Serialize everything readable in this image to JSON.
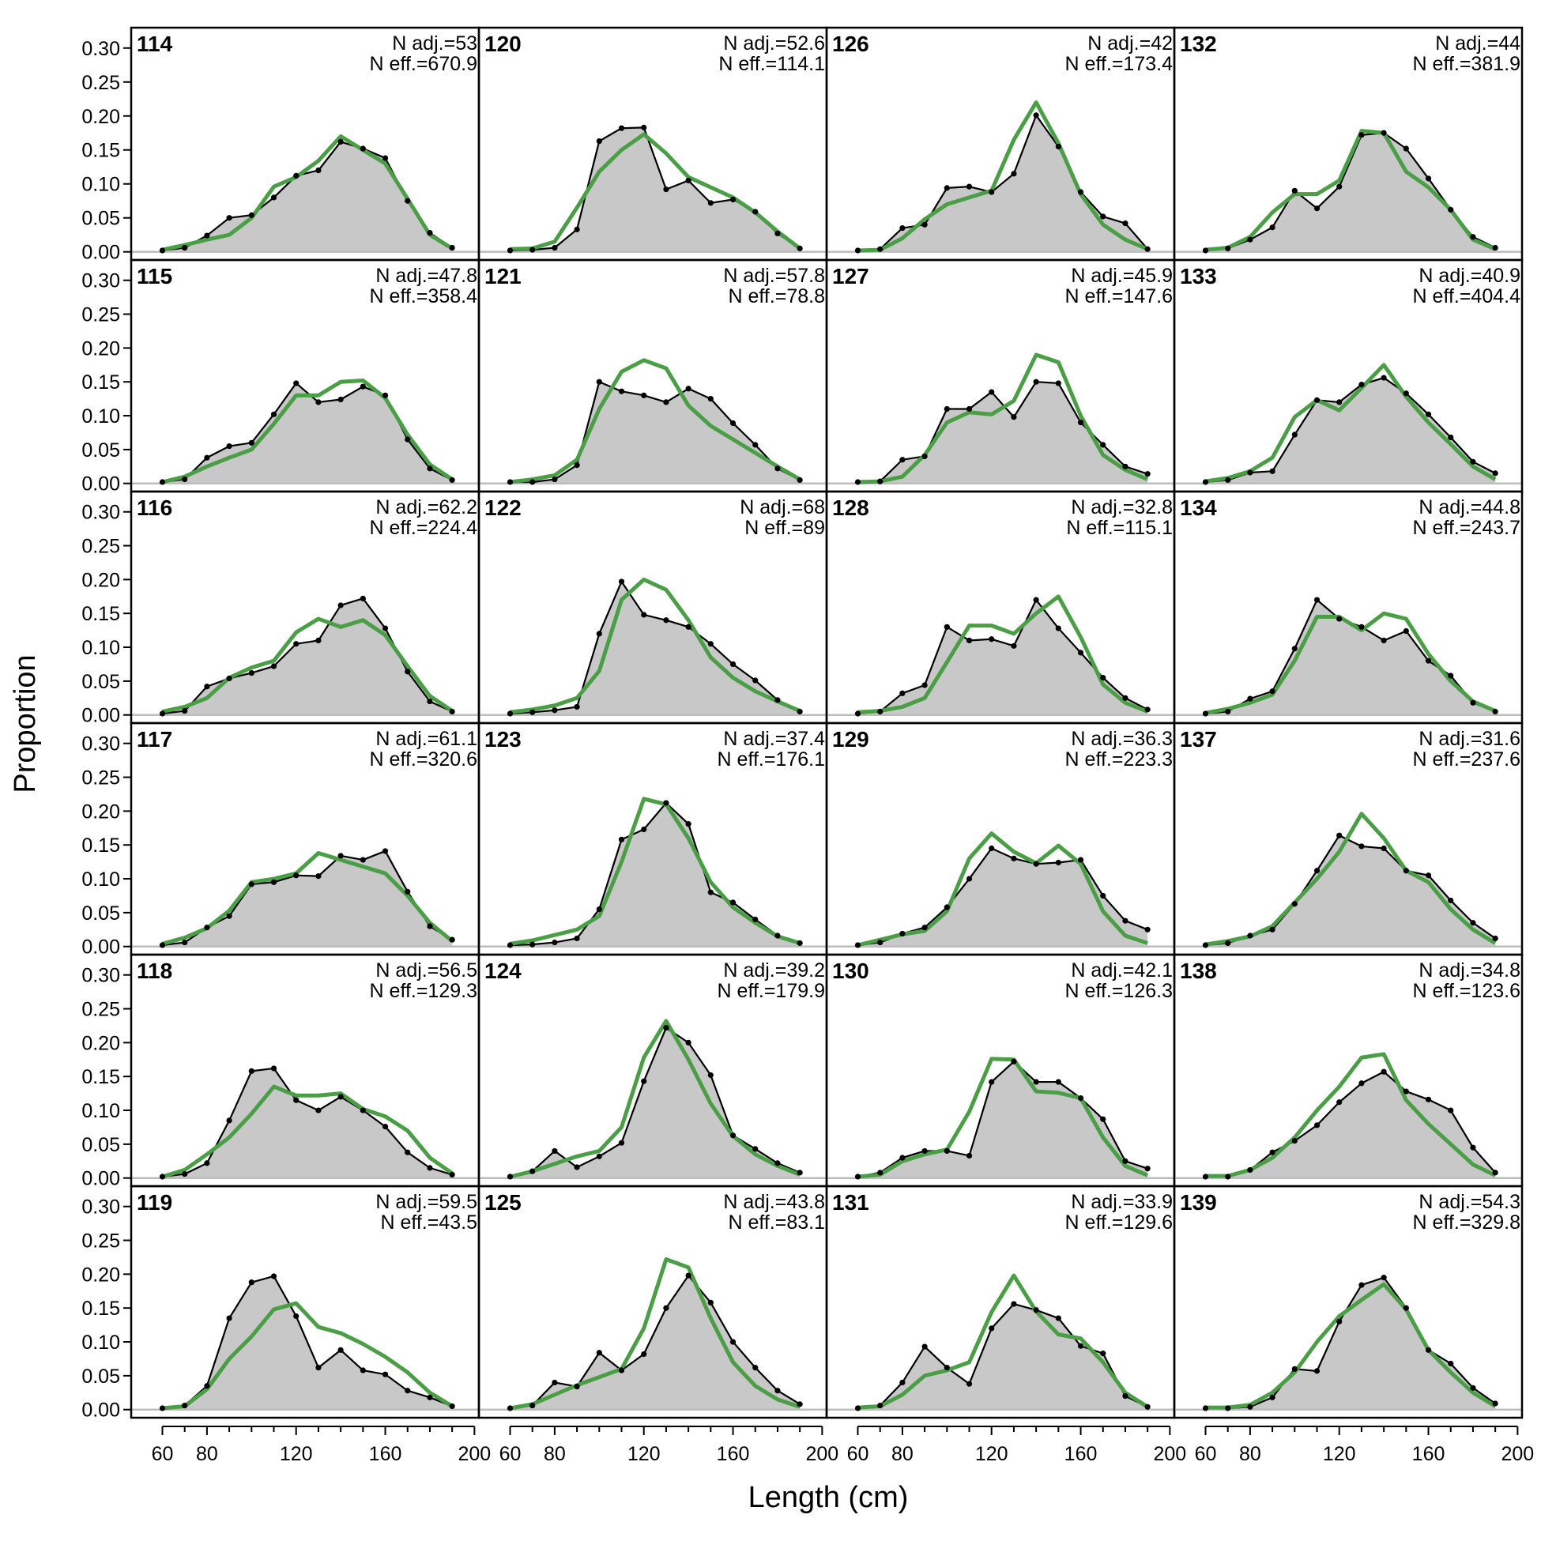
{
  "chart_data": {
    "type": "line",
    "layout": "6 rows x 4 columns of small-multiple panels, filled column by column",
    "xlabel": "Length (cm)",
    "ylabel": "Proportion",
    "xlim": [
      46,
      202
    ],
    "ylim": [
      -0.012,
      0.33
    ],
    "x_ticks": [
      60,
      80,
      120,
      160,
      200
    ],
    "y_ticks": [
      "0.00",
      "0.05",
      "0.10",
      "0.15",
      "0.20",
      "0.25",
      "0.30"
    ],
    "bins": [
      60,
      70,
      80,
      90,
      100,
      110,
      120,
      130,
      140,
      150,
      160,
      170,
      180,
      190
    ],
    "colors": {
      "observed_fill": "#c8c8c8",
      "observed_line": "#000000",
      "expected_line": "#4a9e45",
      "zero_line": "#bdbdbd"
    },
    "panels": [
      {
        "label": "114",
        "n_adj": "N adj.=53",
        "n_eff": "N eff.=670.9",
        "observed": [
          0.002,
          0.006,
          0.024,
          0.05,
          0.054,
          0.08,
          0.112,
          0.12,
          0.162,
          0.152,
          0.138,
          0.075,
          0.028,
          0.006
        ],
        "expected": [
          0.003,
          0.01,
          0.018,
          0.025,
          0.05,
          0.096,
          0.11,
          0.134,
          0.17,
          0.15,
          0.13,
          0.078,
          0.025,
          0.005
        ]
      },
      {
        "label": "115",
        "n_adj": "N adj.=47.8",
        "n_eff": "N eff.=358.4",
        "observed": [
          0.002,
          0.006,
          0.038,
          0.055,
          0.06,
          0.102,
          0.148,
          0.12,
          0.124,
          0.143,
          0.13,
          0.065,
          0.022,
          0.005
        ],
        "expected": [
          0.002,
          0.01,
          0.025,
          0.038,
          0.05,
          0.088,
          0.13,
          0.13,
          0.15,
          0.152,
          0.126,
          0.072,
          0.028,
          0.006
        ]
      },
      {
        "label": "116",
        "n_adj": "N adj.=62.2",
        "n_eff": "N eff.=224.4",
        "observed": [
          0.002,
          0.006,
          0.042,
          0.054,
          0.062,
          0.072,
          0.105,
          0.11,
          0.162,
          0.172,
          0.128,
          0.064,
          0.02,
          0.005
        ],
        "expected": [
          0.005,
          0.012,
          0.025,
          0.055,
          0.07,
          0.08,
          0.122,
          0.142,
          0.13,
          0.14,
          0.118,
          0.072,
          0.028,
          0.006
        ]
      },
      {
        "label": "117",
        "n_adj": "N adj.=61.1",
        "n_eff": "N eff.=320.6",
        "observed": [
          0.002,
          0.006,
          0.028,
          0.045,
          0.092,
          0.095,
          0.105,
          0.104,
          0.134,
          0.128,
          0.141,
          0.081,
          0.03,
          0.01
        ],
        "expected": [
          0.004,
          0.013,
          0.027,
          0.053,
          0.095,
          0.1,
          0.108,
          0.138,
          0.128,
          0.118,
          0.108,
          0.075,
          0.035,
          0.008
        ]
      },
      {
        "label": "118",
        "n_adj": "N adj.=56.5",
        "n_eff": "N eff.=129.3",
        "observed": [
          0.002,
          0.006,
          0.022,
          0.085,
          0.158,
          0.162,
          0.115,
          0.1,
          0.12,
          0.1,
          0.076,
          0.038,
          0.015,
          0.005
        ],
        "expected": [
          0.002,
          0.012,
          0.035,
          0.06,
          0.095,
          0.135,
          0.122,
          0.122,
          0.125,
          0.102,
          0.091,
          0.07,
          0.03,
          0.007
        ]
      },
      {
        "label": "119",
        "n_adj": "N adj.=59.5",
        "n_eff": "N eff.=43.5",
        "observed": [
          0.002,
          0.006,
          0.035,
          0.135,
          0.188,
          0.197,
          0.138,
          0.062,
          0.088,
          0.058,
          0.052,
          0.028,
          0.018,
          0.005
        ],
        "expected": [
          0.002,
          0.005,
          0.03,
          0.075,
          0.108,
          0.148,
          0.157,
          0.122,
          0.113,
          0.097,
          0.078,
          0.055,
          0.025,
          0.005
        ]
      },
      {
        "label": "120",
        "n_adj": "N adj.=52.6",
        "n_eff": "N eff.=114.1",
        "observed": [
          0.002,
          0.003,
          0.006,
          0.033,
          0.163,
          0.182,
          0.183,
          0.092,
          0.105,
          0.072,
          0.077,
          0.059,
          0.027,
          0.005
        ],
        "expected": [
          0.004,
          0.005,
          0.015,
          0.065,
          0.118,
          0.15,
          0.173,
          0.145,
          0.11,
          0.095,
          0.08,
          0.058,
          0.03,
          0.005
        ]
      },
      {
        "label": "121",
        "n_adj": "N adj.=57.8",
        "n_eff": "N eff.=78.8",
        "observed": [
          0.002,
          0.002,
          0.006,
          0.027,
          0.15,
          0.136,
          0.13,
          0.12,
          0.14,
          0.125,
          0.089,
          0.057,
          0.022,
          0.005
        ],
        "expected": [
          0.002,
          0.006,
          0.012,
          0.035,
          0.11,
          0.165,
          0.182,
          0.17,
          0.115,
          0.085,
          0.065,
          0.045,
          0.025,
          0.006
        ]
      },
      {
        "label": "122",
        "n_adj": "N adj.=68",
        "n_eff": "N eff.=89",
        "observed": [
          0.002,
          0.004,
          0.007,
          0.012,
          0.12,
          0.197,
          0.148,
          0.14,
          0.13,
          0.105,
          0.075,
          0.051,
          0.022,
          0.005
        ],
        "expected": [
          0.004,
          0.008,
          0.014,
          0.025,
          0.065,
          0.17,
          0.2,
          0.185,
          0.14,
          0.085,
          0.055,
          0.035,
          0.02,
          0.006
        ]
      },
      {
        "label": "123",
        "n_adj": "N adj.=37.4",
        "n_eff": "N eff.=176.1",
        "observed": [
          0.002,
          0.003,
          0.006,
          0.012,
          0.055,
          0.158,
          0.173,
          0.212,
          0.181,
          0.08,
          0.065,
          0.04,
          0.016,
          0.005
        ],
        "expected": [
          0.004,
          0.009,
          0.017,
          0.025,
          0.045,
          0.125,
          0.218,
          0.21,
          0.16,
          0.095,
          0.058,
          0.035,
          0.015,
          0.005
        ]
      },
      {
        "label": "124",
        "n_adj": "N adj.=39.2",
        "n_eff": "N eff.=179.9",
        "observed": [
          0.002,
          0.01,
          0.04,
          0.016,
          0.032,
          0.052,
          0.143,
          0.222,
          0.2,
          0.152,
          0.063,
          0.043,
          0.022,
          0.008
        ],
        "expected": [
          0.002,
          0.01,
          0.021,
          0.032,
          0.04,
          0.075,
          0.178,
          0.232,
          0.175,
          0.11,
          0.062,
          0.035,
          0.018,
          0.005
        ]
      },
      {
        "label": "125",
        "n_adj": "N adj.=43.8",
        "n_eff": "N eff.=83.1",
        "observed": [
          0.002,
          0.006,
          0.04,
          0.034,
          0.084,
          0.058,
          0.082,
          0.15,
          0.198,
          0.158,
          0.1,
          0.062,
          0.028,
          0.008
        ],
        "expected": [
          0.002,
          0.008,
          0.022,
          0.036,
          0.048,
          0.06,
          0.12,
          0.222,
          0.21,
          0.135,
          0.07,
          0.035,
          0.015,
          0.004
        ]
      },
      {
        "label": "126",
        "n_adj": "N adj.=42",
        "n_eff": "N eff.=173.4",
        "observed": [
          0.002,
          0.004,
          0.035,
          0.04,
          0.094,
          0.096,
          0.088,
          0.115,
          0.201,
          0.155,
          0.088,
          0.052,
          0.042,
          0.004
        ],
        "expected": [
          0.002,
          0.003,
          0.02,
          0.048,
          0.07,
          0.08,
          0.09,
          0.165,
          0.22,
          0.16,
          0.085,
          0.04,
          0.018,
          0.004
        ]
      },
      {
        "label": "127",
        "n_adj": "N adj.=45.9",
        "n_eff": "N eff.=147.6",
        "observed": [
          0.002,
          0.003,
          0.035,
          0.04,
          0.11,
          0.11,
          0.135,
          0.098,
          0.15,
          0.148,
          0.09,
          0.057,
          0.025,
          0.014
        ],
        "expected": [
          0.002,
          0.003,
          0.01,
          0.042,
          0.09,
          0.105,
          0.102,
          0.122,
          0.19,
          0.179,
          0.1,
          0.042,
          0.02,
          0.006
        ]
      },
      {
        "label": "128",
        "n_adj": "N adj.=32.8",
        "n_eff": "N eff.=115.1",
        "observed": [
          0.002,
          0.005,
          0.032,
          0.044,
          0.13,
          0.11,
          0.112,
          0.102,
          0.17,
          0.128,
          0.092,
          0.055,
          0.025,
          0.008
        ],
        "expected": [
          0.004,
          0.006,
          0.012,
          0.025,
          0.078,
          0.132,
          0.132,
          0.12,
          0.15,
          0.175,
          0.115,
          0.045,
          0.018,
          0.005
        ]
      },
      {
        "label": "129",
        "n_adj": "N adj.=36.3",
        "n_eff": "N eff.=223.3",
        "observed": [
          0.002,
          0.006,
          0.019,
          0.028,
          0.058,
          0.1,
          0.145,
          0.13,
          0.122,
          0.124,
          0.128,
          0.075,
          0.038,
          0.025
        ],
        "expected": [
          0.002,
          0.01,
          0.018,
          0.023,
          0.052,
          0.13,
          0.167,
          0.14,
          0.123,
          0.149,
          0.122,
          0.052,
          0.016,
          0.005
        ]
      },
      {
        "label": "130",
        "n_adj": "N adj.=42.1",
        "n_eff": "N eff.=126.3",
        "observed": [
          0.002,
          0.008,
          0.03,
          0.04,
          0.04,
          0.033,
          0.142,
          0.172,
          0.142,
          0.142,
          0.118,
          0.087,
          0.025,
          0.014
        ],
        "expected": [
          0.002,
          0.005,
          0.025,
          0.035,
          0.042,
          0.098,
          0.176,
          0.175,
          0.128,
          0.126,
          0.118,
          0.06,
          0.018,
          0.004
        ]
      },
      {
        "label": "131",
        "n_adj": "N adj.=33.9",
        "n_eff": "N eff.=129.6",
        "observed": [
          0.002,
          0.006,
          0.04,
          0.093,
          0.062,
          0.038,
          0.12,
          0.156,
          0.147,
          0.135,
          0.094,
          0.083,
          0.02,
          0.004
        ],
        "expected": [
          0.003,
          0.005,
          0.022,
          0.05,
          0.058,
          0.07,
          0.144,
          0.198,
          0.145,
          0.111,
          0.105,
          0.07,
          0.025,
          0.004
        ]
      },
      {
        "label": "132",
        "n_adj": "N adj.=44",
        "n_eff": "N eff.=381.9",
        "observed": [
          0.002,
          0.005,
          0.018,
          0.036,
          0.09,
          0.064,
          0.096,
          0.172,
          0.175,
          0.152,
          0.108,
          0.062,
          0.022,
          0.006
        ],
        "expected": [
          0.003,
          0.006,
          0.022,
          0.058,
          0.085,
          0.085,
          0.105,
          0.178,
          0.175,
          0.118,
          0.095,
          0.062,
          0.018,
          0.004
        ]
      },
      {
        "label": "133",
        "n_adj": "N adj.=40.9",
        "n_eff": "N eff.=404.4",
        "observed": [
          0.002,
          0.005,
          0.016,
          0.018,
          0.072,
          0.123,
          0.12,
          0.146,
          0.156,
          0.133,
          0.102,
          0.068,
          0.032,
          0.015
        ],
        "expected": [
          0.003,
          0.008,
          0.018,
          0.038,
          0.098,
          0.123,
          0.108,
          0.141,
          0.175,
          0.128,
          0.09,
          0.058,
          0.025,
          0.006
        ]
      },
      {
        "label": "134",
        "n_adj": "N adj.=44.8",
        "n_eff": "N eff.=243.7",
        "observed": [
          0.002,
          0.005,
          0.024,
          0.035,
          0.098,
          0.17,
          0.142,
          0.13,
          0.11,
          0.124,
          0.08,
          0.058,
          0.018,
          0.005
        ],
        "expected": [
          0.003,
          0.009,
          0.018,
          0.03,
          0.08,
          0.145,
          0.145,
          0.125,
          0.15,
          0.142,
          0.09,
          0.05,
          0.02,
          0.006
        ]
      },
      {
        "label": "137",
        "n_adj": "N adj.=31.6",
        "n_eff": "N eff.=237.6",
        "observed": [
          0.002,
          0.005,
          0.016,
          0.025,
          0.063,
          0.112,
          0.164,
          0.148,
          0.145,
          0.112,
          0.105,
          0.068,
          0.035,
          0.012
        ],
        "expected": [
          0.003,
          0.008,
          0.015,
          0.03,
          0.065,
          0.1,
          0.14,
          0.196,
          0.16,
          0.112,
          0.095,
          0.055,
          0.025,
          0.005
        ]
      },
      {
        "label": "138",
        "n_adj": "N adj.=34.8",
        "n_eff": "N eff.=123.6",
        "observed": [
          0.002,
          0.002,
          0.012,
          0.038,
          0.055,
          0.078,
          0.112,
          0.14,
          0.157,
          0.128,
          0.116,
          0.1,
          0.045,
          0.008
        ],
        "expected": [
          0.003,
          0.003,
          0.012,
          0.03,
          0.06,
          0.1,
          0.135,
          0.178,
          0.183,
          0.115,
          0.08,
          0.05,
          0.02,
          0.004
        ]
      },
      {
        "label": "139",
        "n_adj": "N adj.=54.3",
        "n_eff": "N eff.=329.8",
        "observed": [
          0.002,
          0.002,
          0.004,
          0.018,
          0.06,
          0.057,
          0.13,
          0.184,
          0.195,
          0.15,
          0.088,
          0.068,
          0.032,
          0.009
        ],
        "expected": [
          0.003,
          0.003,
          0.007,
          0.025,
          0.055,
          0.1,
          0.138,
          0.162,
          0.185,
          0.148,
          0.088,
          0.055,
          0.025,
          0.005
        ]
      }
    ]
  }
}
